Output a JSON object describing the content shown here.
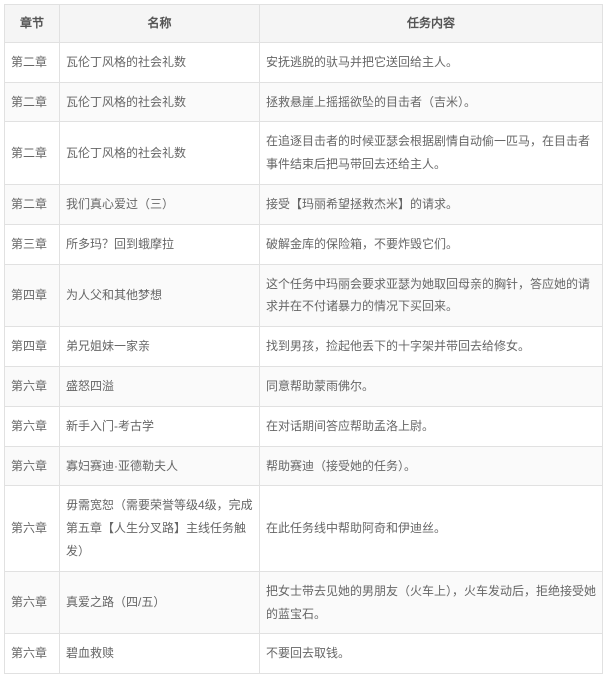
{
  "table": {
    "columns": [
      "章节",
      "名称",
      "任务内容"
    ],
    "rows": [
      [
        "第二章",
        "瓦伦丁风格的社会礼数",
        "安抚逃脱的驮马并把它送回给主人。"
      ],
      [
        "第二章",
        "瓦伦丁风格的社会礼数",
        "拯救悬崖上摇摇欲坠的目击者（吉米）。"
      ],
      [
        "第二章",
        "瓦伦丁风格的社会礼数",
        "在追逐目击者的时候亚瑟会根据剧情自动偷一匹马，在目击者事件结束后把马带回去还给主人。"
      ],
      [
        "第二章",
        "我们真心爱过（三）",
        "接受【玛丽希望拯救杰米】的请求。"
      ],
      [
        "第三章",
        "所多玛？回到蛾摩拉",
        "破解金库的保险箱，不要炸毁它们。"
      ],
      [
        "第四章",
        "为人父和其他梦想",
        "这个任务中玛丽会要求亚瑟为她取回母亲的胸针，答应她的请求并在不付诸暴力的情况下买回来。"
      ],
      [
        "第四章",
        "弟兄姐妹一家亲",
        "找到男孩，捡起他丢下的十字架并带回去给修女。"
      ],
      [
        "第六章",
        "盛怒四溢",
        "同意帮助蒙雨佛尔。"
      ],
      [
        "第六章",
        "新手入门-考古学",
        "在对话期间答应帮助孟洛上尉。"
      ],
      [
        "第六章",
        "寡妇赛迪·亚德勒夫人",
        "帮助赛迪（接受她的任务）。"
      ],
      [
        "第六章",
        "毋需宽恕（需要荣誉等级4级，完成第五章【人生分叉路】主线任务触发）",
        "在此任务线中帮助阿奇和伊迪丝。"
      ],
      [
        "第六章",
        "真爱之路（四/五）",
        "把女士带去见她的男朋友（火车上），火车发动后，拒绝接受她的蓝宝石。"
      ],
      [
        "第六章",
        "碧血救赎",
        "不要回去取钱。"
      ]
    ],
    "header_bg": "#f5f5f5",
    "border_color": "#e1e1e1",
    "text_color": "#666",
    "stripe_even": "#fafafa",
    "stripe_odd": "#ffffff",
    "font_size": 12
  }
}
